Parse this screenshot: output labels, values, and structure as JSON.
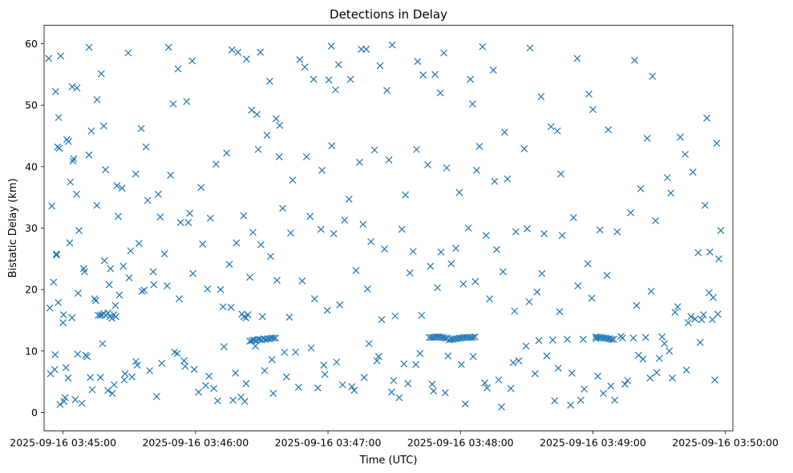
{
  "chart_data": {
    "type": "scatter",
    "title": "Detections in Delay",
    "xlabel": "Time (UTC)",
    "ylabel": "Bistatic Delay (km)",
    "marker": "x",
    "color": "#1f77b4",
    "x_tick_labels": [
      "2025-09-16 03:45:00",
      "2025-09-16 03:46:00",
      "2025-09-16 03:47:00",
      "2025-09-16 03:48:00",
      "2025-09-16 03:49:00",
      "2025-09-16 03:50:00"
    ],
    "x_ticks_seconds_after_0345": [
      0,
      60,
      120,
      180,
      240,
      300
    ],
    "xlim_seconds_after_0345": [
      -8.6,
      303.4
    ],
    "y_ticks": [
      0,
      10,
      20,
      30,
      40,
      50,
      60
    ],
    "ylim": [
      -3,
      63
    ],
    "grid": false,
    "series": [
      {
        "x_seconds_after_0345": [
          -6.5,
          -6,
          -5.7,
          -3.8,
          -3.4,
          -3,
          -3,
          -2.5,
          -2,
          -1.4,
          -1.1,
          0,
          1.7,
          2.3,
          3.3,
          4.1,
          4.5,
          4.8,
          6.3,
          6.8,
          10.9,
          11.8,
          12.8,
          15.4,
          17.3,
          18.4,
          23.7,
          29.5,
          35.4,
          38.3,
          44,
          47.8,
          49.9,
          52.1,
          56,
          58.5,
          72.5,
          76.5,
          79.2,
          83.1,
          85.4,
          87.8,
          89.4,
          93.6,
          96.5,
          98.1,
          107.2,
          109.5,
          113.5,
          120.4,
          121.5,
          123.4,
          124.8,
          130.2,
          135.1,
          137.3,
          143.6,
          146.7,
          149.1,
          160.6,
          163.1,
          168.5,
          170.9,
          172.5,
          184.5,
          185.5,
          188.6,
          190,
          194.9,
          200,
          211.5,
          216.5,
          221,
          223.9,
          225.5,
          232.9,
          238.2,
          240,
          247,
          258.9,
          264.6,
          267,
          275.3,
          281.8,
          290.8,
          293,
          294.5,
          297.9,
          0.4,
          0.9,
          5.5,
          8.5,
          10.2,
          13.2,
          16.9,
          20.3,
          22.3,
          28.1,
          31.2,
          33.6,
          42.4,
          51.7,
          55.3,
          59.4,
          64.6,
          68.3,
          70,
          77,
          80.6,
          82.3,
          91.3,
          95.2,
          101.2,
          105.3,
          115.4,
          118.1,
          126.6,
          131.9,
          138.6,
          142.2,
          148.8,
          152.3,
          156.2,
          159.8,
          167.8,
          173.1,
          182.2,
          192.1,
          198.6,
          202.8,
          206.4,
          213.8,
          219.1,
          222.7,
          229.9,
          234.5,
          244.7,
          249.9,
          255.7,
          262.7,
          265.9,
          270.1,
          276,
          283.2,
          287.7,
          289.3,
          292.6,
          297,
          -4.3,
          0.2,
          3,
          7.2,
          9.7,
          14.3,
          18.7,
          21.5,
          25,
          27.3,
          30.6,
          34.4,
          36.7,
          40.8,
          45.9,
          53.2,
          56.7,
          63.2,
          66.7,
          75.3,
          78.5,
          86,
          89.6,
          94,
          99.5,
          103.1,
          111.9,
          116.8,
          122.6,
          127.5,
          135.9,
          139.4,
          145.6,
          153.5,
          158.6,
          166.4,
          171.2,
          177.9,
          183.6,
          191.6,
          196.4,
          205.1,
          210.2,
          217.9,
          226.1,
          231.2,
          237.7,
          243.2,
          251,
          257.1,
          261.6,
          268.4,
          273.7,
          279.6,
          285.3,
          291.6,
          296.1,
          -5.1,
          -1.7,
          2.4,
          6.1,
          11.7,
          15.3,
          19.2,
          24.4,
          26.7,
          32.9,
          37.6,
          43.1,
          48.7,
          57.4,
          62.5,
          69.3,
          74.1,
          81.8,
          88.4,
          92.4,
          97.9,
          104,
          110.3,
          117.3,
          121.7,
          129.5,
          134.3,
          141.1,
          147.6,
          155.1,
          160.1,
          165.2,
          173.8,
          179.5,
          187.3,
          195.5,
          201.3,
          208.9,
          214.7,
          224.9,
          233.2,
          239.5,
          246.4,
          252.7,
          259.8,
          266.4,
          272.4,
          278.4,
          286.3,
          294.1,
          -2.2,
          4,
          9.3,
          14.8,
          20.9,
          25.5,
          29.9,
          35.8,
          41.1,
          47.1,
          52.6,
          58.8,
          65.4,
          71.3,
          76.1,
          84.6,
          90.3,
          96.9,
          102.5,
          108.3,
          113.9,
          119.7,
          125.3,
          132.7,
          137.9,
          144.3,
          150.4,
          157.1,
          162.4,
          169.6,
          175.8,
          181.3,
          186.7,
          193.2,
          199.3,
          204.5,
          211.1,
          216.9,
          224.3,
          230.5,
          236.1,
          242.2,
          248.1,
          254.5,
          260.7,
          268.9,
          274.6,
          282.4,
          288.6,
          295.2,
          -3.6,
          1.3,
          6.6,
          12.3,
          17.9,
          23.1,
          27.7,
          33,
          39.2,
          44.7,
          50.5,
          54.8,
          61.4,
          66.1,
          72.9,
          78.1,
          82.9,
          87.1,
          94.6,
          100.3,
          106.7,
          112.4,
          118.6,
          123.9,
          130.8,
          136.4,
          143,
          149.7,
          154.4,
          161.7,
          167.2,
          174.4,
          180.4,
          185.8,
          191,
          197.3,
          203.9,
          209.7,
          215.5,
          221.8,
          228.4,
          235.6,
          241.4,
          247.6,
          253.4,
          258.3,
          263.9,
          271.3,
          277.2,
          284.4,
          290.1,
          296.6,
          15.9,
          16.8,
          17.6,
          18.5,
          19.4,
          20.3,
          21.2,
          22.1,
          23,
          23.9,
          81,
          81.9,
          82.8,
          83.7,
          84.6,
          85.5,
          86.4,
          87.3,
          88.2,
          89.1,
          89.9,
          90.8,
          91.7,
          92.6,
          93.5,
          94.4,
          95.3,
          96.2,
          165.9,
          166.8,
          167.7,
          168.6,
          169.5,
          170.4,
          171.3,
          172.2,
          173.1,
          174,
          174.9,
          175.8,
          176.7,
          177.6,
          178.5,
          179.4,
          180.3,
          181.2,
          182.1,
          183,
          183.9,
          184.8,
          185.7,
          186.6,
          241.3,
          242.2,
          243.1,
          244,
          244.9,
          245.8,
          246.7,
          247.6,
          248.5,
          249.4,
          250.3,
          251.2,
          252.1,
          253,
          253.9,
          254.8,
          255.7,
          256.6,
          257.5,
          258.4,
          259.3,
          260.2,
          261.1,
          262
        ],
        "y": [
          57.6,
          17,
          6.3,
          7,
          52.2,
          25.8,
          25.6,
          43.2,
          48,
          1.3,
          58,
          14.6,
          44.4,
          5.6,
          37.5,
          53,
          40.9,
          41.3,
          52.8,
          19.4,
          9.1,
          59.4,
          45.8,
          50.9,
          55.1,
          46.6,
          17.4,
          58.5,
          46.2,
          34.5,
          31.8,
          59.4,
          50.2,
          55.9,
          50.6,
          57.2,
          17.2,
          59,
          58.6,
          57.5,
          49.2,
          48.5,
          58.6,
          53.9,
          47.8,
          46.7,
          57.4,
          56.2,
          54.2,
          54.1,
          59.6,
          52.5,
          56.6,
          54.2,
          59.1,
          59.1,
          56.4,
          52.4,
          59.8,
          57.1,
          54.9,
          55,
          52,
          58.5,
          54.2,
          50.2,
          43.3,
          59.5,
          55.7,
          45.6,
          59.3,
          51.4,
          46.5,
          45.8,
          38.8,
          57.6,
          51.8,
          49.3,
          46,
          57.3,
          44.6,
          54.7,
          35.7,
          42,
          33.7,
          26.1,
          18.7,
          29.6,
          1.8,
          2.4,
          2.1,
          1.5,
          9.3,
          3.7,
          5.7,
          3.6,
          3.1,
          6.3,
          5.8,
          7.7,
          2.6,
          9.6,
          7.5,
          7,
          4.4,
          3.9,
          1.9,
          2,
          2.5,
          1.8,
          6.8,
          3.1,
          5.8,
          9.8,
          4,
          7.7,
          4.5,
          3.6,
          11.2,
          8.4,
          3.3,
          2.4,
          4.7,
          7.8,
          3.5,
          3.2,
          1.4,
          4,
          0.9,
          3.9,
          8.4,
          6.3,
          9.2,
          1.9,
          1.2,
          2,
          3.1,
          2,
          5.2,
          8.7,
          5.6,
          8.8,
          5.6,
          14.6,
          26,
          15.1,
          19.5,
          25,
          21.2,
          15.9,
          27.6,
          29.6,
          22.9,
          18.5,
          24.7,
          23.4,
          31.9,
          23.8,
          26.3,
          27.5,
          19.9,
          22.9,
          25.8,
          30.9,
          30.9,
          27.4,
          31.6,
          24.1,
          27.6,
          29.3,
          27.3,
          25.4,
          33.2,
          29.2,
          31.9,
          29.8,
          29.1,
          31.3,
          30.6,
          27.8,
          26.6,
          29.8,
          26.2,
          23.8,
          26.1,
          26.7,
          30,
          28.8,
          26.5,
          29.4,
          29.9,
          29.1,
          28.8,
          31.7,
          24.2,
          29.7,
          29.4,
          32.5,
          36.4,
          31.2,
          38.2,
          44.8,
          39.1,
          47.9,
          43.8,
          33.6,
          43,
          44.1,
          35.5,
          41.9,
          33.7,
          39.5,
          36.9,
          36.5,
          38.8,
          43.2,
          35.5,
          38.6,
          32.4,
          36.6,
          40.4,
          42.2,
          32,
          42.8,
          45.1,
          41.6,
          37.8,
          41.6,
          39.4,
          43.4,
          34.7,
          40.7,
          42.7,
          41.1,
          35.4,
          42.8,
          40.3,
          39.8,
          35.8,
          39.4,
          37.6,
          38,
          42.9,
          19.6,
          16.4,
          20.6,
          18.6,
          22.3,
          12.4,
          17.4,
          19.7,
          11.2,
          17.2,
          15.2,
          15.1,
          17.9,
          15.4,
          23.4,
          18.2,
          20.8,
          19.1,
          21.9,
          19.7,
          20.8,
          20.6,
          18.5,
          22.6,
          20.1,
          20,
          17.1,
          22,
          15.6,
          21.5,
          15.5,
          21.4,
          18.5,
          16.6,
          17.5,
          23.1,
          20.1,
          15.1,
          15.7,
          22.7,
          15.8,
          20.3,
          24.2,
          20.9,
          21.3,
          18.5,
          22.9,
          16.5,
          18,
          22.6,
          7.2,
          6.4,
          3.8,
          5.9,
          4.3,
          4.6,
          9.3,
          6.5,
          10,
          6.9,
          11.4,
          5.3,
          9.4,
          7.3,
          9.5,
          5.7,
          11.2,
          4.5,
          5.3,
          8.3,
          6.8,
          8,
          9.8,
          8.4,
          3.3,
          5.9,
          10.7,
          6.4,
          4.7,
          10.8,
          8.6,
          9.8,
          4.1,
          10.5,
          6.2,
          8.2,
          4.2,
          5.7,
          9.1,
          5.2,
          7.9,
          9.6,
          4.6,
          9.2,
          7.8,
          9.1,
          4.8,
          5.3,
          8.1,
          10.8,
          11.7,
          11.8,
          11.9,
          11.9,
          12,
          12,
          12.1,
          12.1,
          12.2,
          12.3,
          16.3,
          15.6,
          15.9,
          16,
          15.8,
          15.8,
          15.9,
          16.1,
          15.8,
          16.2,
          15.6,
          15.3,
          15.9,
          15.6,
          16,
          15.6,
          15.4,
          15.9,
          11.6,
          11.7,
          11.8,
          11.7,
          11.9,
          11.9,
          11.8,
          12,
          11.9,
          12,
          12,
          12.1,
          12.1,
          12.1,
          12.2,
          12.2,
          12.2,
          12.3,
          12.3,
          12.3,
          12.2,
          12.2,
          12.1,
          12.1,
          11.8,
          11.9,
          11.9,
          12,
          12,
          12.1,
          12.1,
          12.2,
          12.2,
          12.2,
          12.2,
          12.2,
          12.2,
          12.3,
          12.3,
          12.2,
          12.2,
          12.2,
          12.1,
          12.1,
          12,
          12,
          11.9,
          11.9
        ]
      }
    ]
  }
}
